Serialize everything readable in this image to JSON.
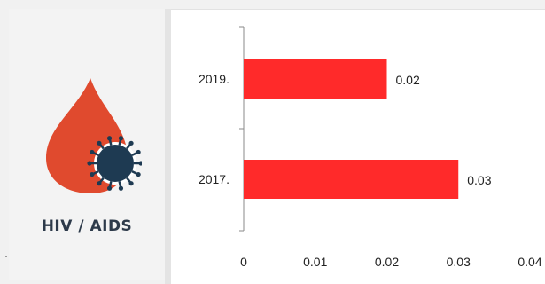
{
  "logo": {
    "label": "HIV / AIDS",
    "icon": "blood-drop-virus-icon",
    "drop_color": "#e04a2e",
    "virus_color": "#1e3a52"
  },
  "chart_data": {
    "type": "bar",
    "orientation": "horizontal",
    "categories": [
      "2019.",
      "2017."
    ],
    "values": [
      0.02,
      0.03
    ],
    "data_labels": [
      "0.02",
      "0.03"
    ],
    "xlim": [
      0,
      0.04
    ],
    "x_ticks": [
      "0",
      "0.01",
      "0.02",
      "0.03",
      "0.04"
    ],
    "bar_color": "#ff2a2a",
    "grid": false,
    "legend": "none"
  }
}
